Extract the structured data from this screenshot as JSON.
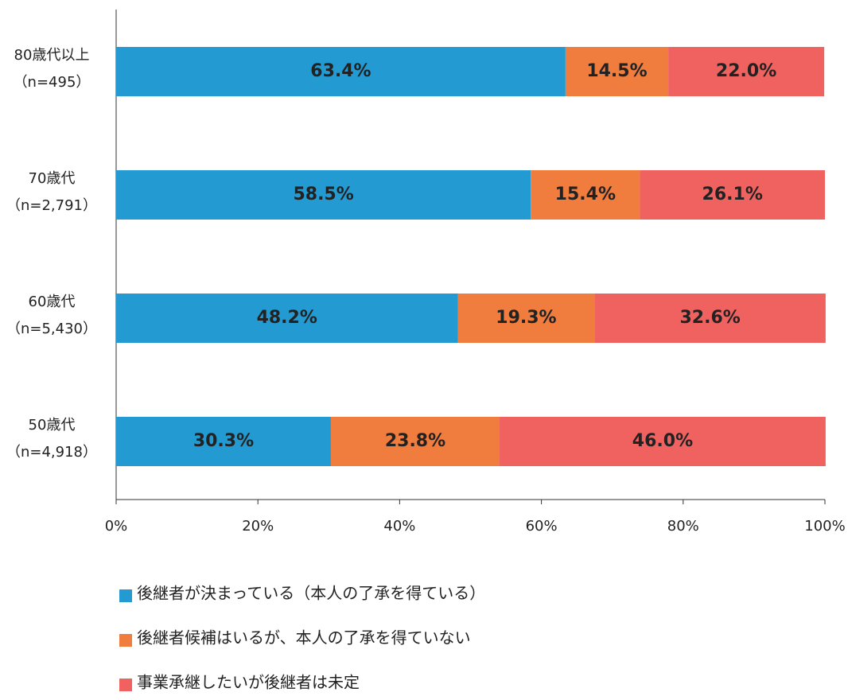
{
  "chart_data": {
    "type": "stacked-bar-horizontal",
    "categories": [
      [
        "80歳代以上",
        "（n=495）"
      ],
      [
        "70歳代",
        "（n=2,791）"
      ],
      [
        "60歳代",
        "（n=5,430）"
      ],
      [
        "50歳代",
        "（n=4,918）"
      ]
    ],
    "series": [
      {
        "name": "後継者が決まっている（本人の了承を得ている）",
        "color": "#239bd2",
        "values": [
          63.4,
          58.5,
          48.2,
          30.3
        ],
        "value_labels": [
          "63.4%",
          "58.5%",
          "48.2%",
          "30.3%"
        ]
      },
      {
        "name": "後継者候補はいるが、本人の了承を得ていない",
        "color": "#f07c3e",
        "values": [
          14.5,
          15.4,
          19.3,
          23.8
        ],
        "value_labels": [
          "14.5%",
          "15.4%",
          "19.3%",
          "23.8%"
        ]
      },
      {
        "name": "事業承継したいが後継者は未定",
        "color": "#f0625f",
        "values": [
          22.0,
          26.1,
          32.6,
          46.0
        ],
        "value_labels": [
          "22.0%",
          "26.1%",
          "32.6%",
          "46.0%"
        ]
      }
    ],
    "xlim": [
      0,
      100
    ],
    "xticks": [
      {
        "value": 0,
        "label": "0%"
      },
      {
        "value": 20,
        "label": "20%"
      },
      {
        "value": 40,
        "label": "40%"
      },
      {
        "value": 60,
        "label": "60%"
      },
      {
        "value": 80,
        "label": "80%"
      },
      {
        "value": 100,
        "label": "100%"
      }
    ]
  }
}
